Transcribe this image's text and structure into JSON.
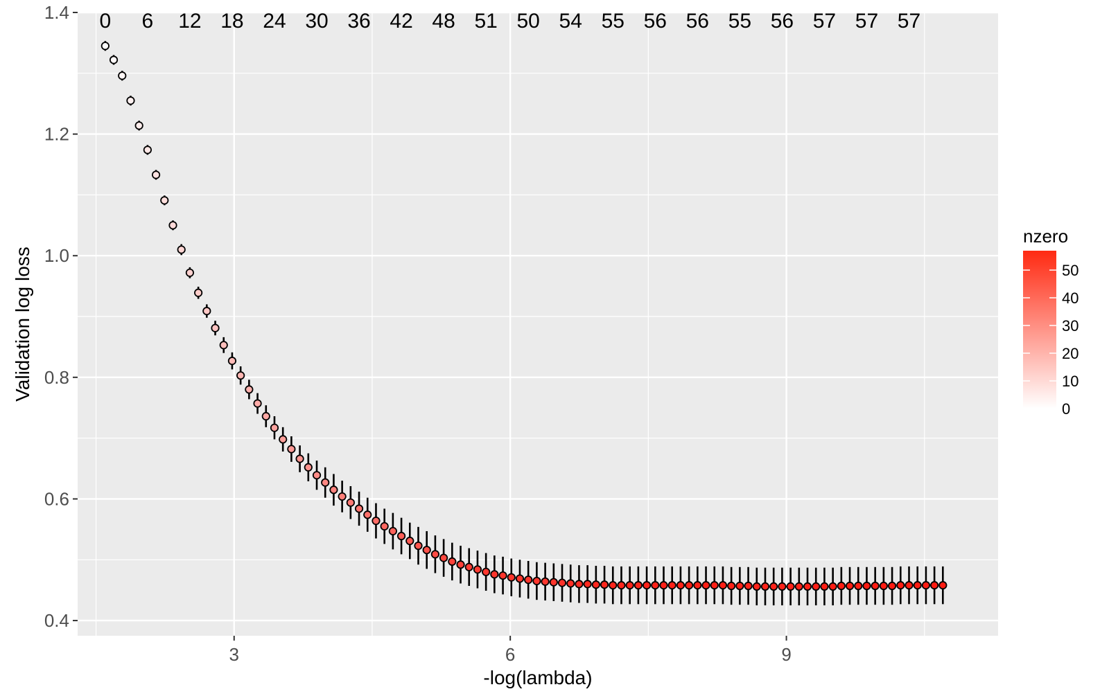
{
  "chart_data": {
    "type": "scatter",
    "title": "",
    "xlabel": "-log(lambda)",
    "ylabel": "Validation log loss",
    "xlim": [
      1.3,
      11.3
    ],
    "ylim": [
      0.375,
      1.4
    ],
    "x_ticks": [
      3,
      6,
      9
    ],
    "x_tick_labels": [
      "3",
      "6",
      "9"
    ],
    "y_ticks": [
      0.4,
      0.6,
      0.8,
      1.0,
      1.2,
      1.4
    ],
    "y_tick_labels": [
      "0.4",
      "0.6",
      "0.8",
      "1.0",
      "1.2",
      "1.4"
    ],
    "grid": true,
    "x_start": 1.6,
    "x_end": 10.7,
    "n_points": 100,
    "y": [
      1.345,
      1.322,
      1.296,
      1.255,
      1.214,
      1.174,
      1.133,
      1.091,
      1.05,
      1.01,
      0.972,
      0.939,
      0.909,
      0.881,
      0.853,
      0.827,
      0.803,
      0.78,
      0.757,
      0.736,
      0.717,
      0.698,
      0.682,
      0.666,
      0.652,
      0.639,
      0.627,
      0.615,
      0.604,
      0.594,
      0.584,
      0.574,
      0.564,
      0.555,
      0.547,
      0.539,
      0.531,
      0.523,
      0.516,
      0.509,
      0.503,
      0.497,
      0.492,
      0.488,
      0.484,
      0.48,
      0.476,
      0.474,
      0.471,
      0.469,
      0.467,
      0.465,
      0.464,
      0.463,
      0.462,
      0.461,
      0.46,
      0.46,
      0.459,
      0.459,
      0.458,
      0.458,
      0.458,
      0.458,
      0.458,
      0.458,
      0.458,
      0.458,
      0.458,
      0.458,
      0.458,
      0.458,
      0.458,
      0.458,
      0.457,
      0.457,
      0.457,
      0.456,
      0.456,
      0.456,
      0.456,
      0.456,
      0.456,
      0.456,
      0.456,
      0.456,
      0.456,
      0.457,
      0.457,
      0.457,
      0.457,
      0.457,
      0.457,
      0.457,
      0.458,
      0.458,
      0.458,
      0.458,
      0.458,
      0.458
    ],
    "err": [
      0.008,
      0.008,
      0.008,
      0.008,
      0.008,
      0.008,
      0.008,
      0.008,
      0.008,
      0.009,
      0.009,
      0.01,
      0.011,
      0.012,
      0.013,
      0.014,
      0.015,
      0.016,
      0.017,
      0.018,
      0.019,
      0.02,
      0.021,
      0.022,
      0.023,
      0.024,
      0.025,
      0.026,
      0.026,
      0.027,
      0.028,
      0.028,
      0.029,
      0.029,
      0.03,
      0.03,
      0.03,
      0.031,
      0.031,
      0.031,
      0.031,
      0.031,
      0.031,
      0.031,
      0.031,
      0.031,
      0.031,
      0.031,
      0.031,
      0.031,
      0.031,
      0.031,
      0.031,
      0.031,
      0.031,
      0.031,
      0.031,
      0.031,
      0.031,
      0.031,
      0.031,
      0.031,
      0.031,
      0.031,
      0.031,
      0.031,
      0.031,
      0.031,
      0.031,
      0.031,
      0.031,
      0.031,
      0.031,
      0.031,
      0.031,
      0.031,
      0.031,
      0.031,
      0.031,
      0.031,
      0.031,
      0.031,
      0.031,
      0.031,
      0.031,
      0.031,
      0.031,
      0.031,
      0.031,
      0.031,
      0.031,
      0.031,
      0.031,
      0.031,
      0.031,
      0.031,
      0.031,
      0.031,
      0.031,
      0.031
    ],
    "nzero_labels": [
      "0",
      "6",
      "12",
      "18",
      "24",
      "30",
      "36",
      "42",
      "48",
      "51",
      "50",
      "54",
      "55",
      "56",
      "56",
      "55",
      "56",
      "57",
      "57",
      "57"
    ],
    "legend": {
      "title": "nzero",
      "ticks": [
        0,
        10,
        20,
        30,
        40,
        50
      ],
      "tick_labels": [
        "0",
        "10",
        "20",
        "30",
        "40",
        "50"
      ],
      "min": 0,
      "max": 57,
      "position": "right"
    },
    "colors": {
      "panel_bg": "#ebebeb",
      "grid": "#ffffff",
      "low": "#ffffff",
      "high": "#ff0000",
      "point_stroke": "#000000",
      "errorbar": "#000000"
    }
  }
}
